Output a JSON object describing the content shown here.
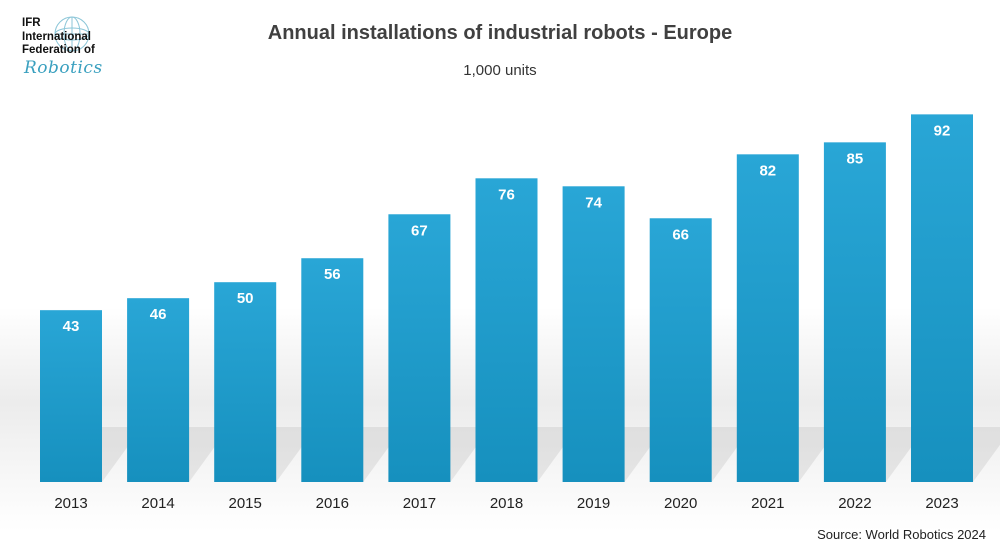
{
  "logo": {
    "line1": "IFR",
    "line2": "International",
    "line3": "Federation of",
    "line4": "Robotics"
  },
  "chart_data": {
    "type": "bar",
    "title": "Annual installations of industrial robots - Europe",
    "subtitle": "1,000 units",
    "categories": [
      "2013",
      "2014",
      "2015",
      "2016",
      "2017",
      "2018",
      "2019",
      "2020",
      "2021",
      "2022",
      "2023"
    ],
    "values": [
      43,
      46,
      50,
      56,
      67,
      76,
      74,
      66,
      82,
      85,
      92
    ],
    "xlabel": "",
    "ylabel": "",
    "ylim": [
      0,
      100
    ],
    "grid": false,
    "legend": "none",
    "bar_color": "#1E9AC9",
    "label_color": "#ffffff"
  },
  "source": "Source: World Robotics 2024"
}
